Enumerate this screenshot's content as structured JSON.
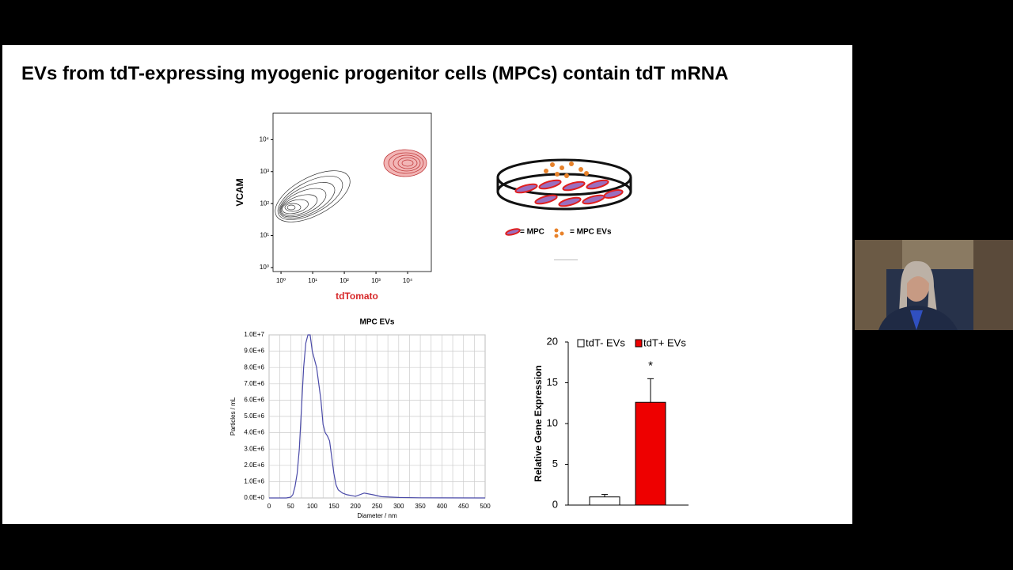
{
  "title": "EVs from tdT-expressing myogenic progenitor cells (MPCs) contain tdT mRNA",
  "diagram": {
    "legend": [
      "= MPC",
      "= MPC EVs"
    ]
  },
  "chart_data": [
    {
      "type": "contour",
      "ylabel": "VCAM",
      "xlabel": "tdTomato",
      "xlabel_color": "#d62728",
      "log_scale": true,
      "xlim": [
        0.56,
        56000
      ],
      "ylim": [
        0.75,
        67000
      ],
      "xticks": [
        {
          "value": 1,
          "label": "10⁰"
        },
        {
          "value": 10,
          "label": "10¹"
        },
        {
          "value": 100,
          "label": "10²"
        },
        {
          "value": 1000,
          "label": "10³"
        },
        {
          "value": 10000,
          "label": "10⁴"
        }
      ],
      "yticks": [
        {
          "value": 1,
          "label": "10⁰"
        },
        {
          "value": 10,
          "label": "10¹"
        },
        {
          "value": 100,
          "label": "10²"
        },
        {
          "value": 1000,
          "label": "10³"
        },
        {
          "value": 10000,
          "label": "10⁴"
        }
      ]
    },
    {
      "type": "line",
      "title": "MPC EVs",
      "xlabel": "Diameter / nm",
      "ylabel": "Particles / mL",
      "color": "#4a4aa8",
      "grid": true,
      "x": [
        0,
        40,
        50,
        55,
        60,
        65,
        70,
        75,
        80,
        85,
        90,
        95,
        100,
        105,
        110,
        115,
        120,
        125,
        130,
        135,
        140,
        145,
        150,
        155,
        160,
        170,
        180,
        200,
        220,
        240,
        260,
        300,
        350,
        400,
        500
      ],
      "values": [
        0,
        0,
        50000,
        200000,
        700000,
        1500000,
        3000000,
        5500000,
        8000000,
        9500000,
        10000000,
        10000000,
        9000000,
        8500000,
        8000000,
        7000000,
        6000000,
        4500000,
        4000000,
        3800000,
        3500000,
        2500000,
        1500000,
        800000,
        500000,
        300000,
        200000,
        100000,
        300000,
        200000,
        80000,
        30000,
        10000,
        5000,
        0
      ],
      "xlim": [
        0,
        500
      ],
      "ylim": [
        0,
        10000000
      ],
      "xticks": [
        0,
        25,
        50,
        75,
        100,
        125,
        150,
        175,
        200,
        225,
        250,
        275,
        300,
        325,
        350,
        375,
        400,
        425,
        450,
        475,
        500
      ],
      "yticks": [
        {
          "value": 0,
          "label": "0.0E+0"
        },
        {
          "value": 1000000,
          "label": "1.0E+6"
        },
        {
          "value": 2000000,
          "label": "2.0E+6"
        },
        {
          "value": 3000000,
          "label": "3.0E+6"
        },
        {
          "value": 4000000,
          "label": "4.0E+6"
        },
        {
          "value": 5000000,
          "label": "5.0E+6"
        },
        {
          "value": 6000000,
          "label": "6.0E+6"
        },
        {
          "value": 7000000,
          "label": "7.0E+6"
        },
        {
          "value": 8000000,
          "label": "8.0E+6"
        },
        {
          "value": 9000000,
          "label": "9.0E+6"
        },
        {
          "value": 10000000,
          "label": "1.0E+7"
        }
      ]
    },
    {
      "type": "bar",
      "ylabel": "Relative Gene Expression",
      "categories": [
        null,
        null
      ],
      "series": [
        {
          "name": "tdT- EVs",
          "color": "#ffffff",
          "values": [
            1.0,
            null
          ],
          "errors": [
            0.3,
            null
          ]
        },
        {
          "name": "tdT+ EVs",
          "color": "#ee0000",
          "values": [
            null,
            12.6
          ],
          "errors": [
            null,
            2.9
          ]
        }
      ],
      "annotation": "*",
      "ylim": [
        0,
        20
      ],
      "yticks": [
        0,
        5,
        10,
        15,
        20
      ]
    }
  ]
}
